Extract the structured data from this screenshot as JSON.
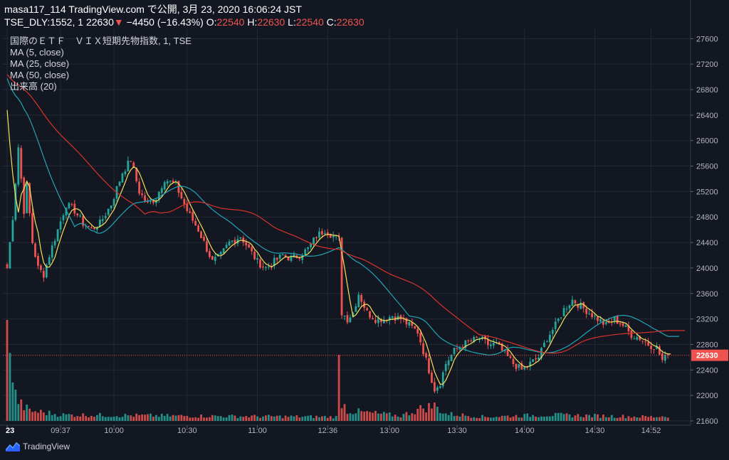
{
  "header": {
    "line1": "masa117_114 TradingView.com で公開, 3月 23, 2020 16:06:24 JST",
    "symbol": "TSE_DLY:1552, 1",
    "last": "22630",
    "arrow": "▼",
    "change": "−4450 (−16.43%)",
    "o_label": "O:",
    "o": "22540",
    "h_label": "H:",
    "h": "22630",
    "l_label": "L:",
    "l": "22540",
    "c_label": "C:",
    "c": "22630"
  },
  "legend": {
    "title": "国際のＥＴＦ　ＶＩＸ短期先物指数, 1, TSE",
    "ma5": "MA (5, close)",
    "ma25": "MA (25, close)",
    "ma50": "MA (50, close)",
    "volume": "出来高 (20)"
  },
  "brand": "TradingView",
  "chart_data": {
    "type": "candlestick",
    "y_ticks": [
      21600,
      22000,
      22400,
      22800,
      23200,
      23600,
      24000,
      24400,
      24800,
      25200,
      25600,
      26000,
      26400,
      26800,
      27200,
      27600
    ],
    "ylim": [
      21600,
      27760
    ],
    "x_ticks": [
      "23",
      "09:37",
      "10:00",
      "10:30",
      "11:00",
      "12:36",
      "13:00",
      "13:30",
      "14:00",
      "14:30",
      "14:52"
    ],
    "last_price": 22630,
    "last_price_label": "22630",
    "grid": true,
    "colors": {
      "up": "#26a69a",
      "down": "#ef5350",
      "ma5": "#f5e05a",
      "ma25": "#1fa6b4",
      "ma50": "#d9342b",
      "last_line": "#ef5350"
    },
    "anchors": [
      [
        0,
        24000
      ],
      [
        2,
        24800
      ],
      [
        4,
        25900
      ],
      [
        6,
        24900
      ],
      [
        7,
        25300
      ],
      [
        9,
        24400
      ],
      [
        11,
        24000
      ],
      [
        13,
        23900
      ],
      [
        15,
        24200
      ],
      [
        18,
        24600
      ],
      [
        21,
        25000
      ],
      [
        24,
        24900
      ],
      [
        27,
        24700
      ],
      [
        30,
        24600
      ],
      [
        33,
        24700
      ],
      [
        37,
        25000
      ],
      [
        41,
        25500
      ],
      [
        44,
        25700
      ],
      [
        47,
        25200
      ],
      [
        50,
        25000
      ],
      [
        53,
        25100
      ],
      [
        56,
        25400
      ],
      [
        60,
        25300
      ],
      [
        64,
        24900
      ],
      [
        68,
        24600
      ],
      [
        71,
        24300
      ],
      [
        73,
        24100
      ],
      [
        76,
        24200
      ],
      [
        79,
        24400
      ],
      [
        83,
        24500
      ],
      [
        86,
        24300
      ],
      [
        89,
        24100
      ],
      [
        92,
        24000
      ],
      [
        95,
        24100
      ],
      [
        98,
        24200
      ],
      [
        101,
        24150
      ],
      [
        104,
        24200
      ],
      [
        107,
        24300
      ],
      [
        110,
        24500
      ],
      [
        113,
        24600
      ],
      [
        116,
        24500
      ],
      [
        118,
        24450
      ],
      [
        119,
        23300
      ],
      [
        121,
        23200
      ],
      [
        123,
        23300
      ],
      [
        125,
        23600
      ],
      [
        128,
        23300
      ],
      [
        131,
        23200
      ],
      [
        134,
        23200
      ],
      [
        137,
        23250
      ],
      [
        140,
        23200
      ],
      [
        143,
        23100
      ],
      [
        146,
        23000
      ],
      [
        148,
        22700
      ],
      [
        150,
        22400
      ],
      [
        152,
        22100
      ],
      [
        154,
        22200
      ],
      [
        156,
        22500
      ],
      [
        159,
        22700
      ],
      [
        162,
        22800
      ],
      [
        165,
        22850
      ],
      [
        168,
        22900
      ],
      [
        171,
        22800
      ],
      [
        174,
        22800
      ],
      [
        177,
        22650
      ],
      [
        180,
        22500
      ],
      [
        183,
        22400
      ],
      [
        186,
        22500
      ],
      [
        189,
        22600
      ],
      [
        192,
        22900
      ],
      [
        195,
        23100
      ],
      [
        198,
        23350
      ],
      [
        201,
        23500
      ],
      [
        204,
        23400
      ],
      [
        207,
        23300
      ],
      [
        210,
        23200
      ],
      [
        213,
        23100
      ],
      [
        216,
        23200
      ],
      [
        219,
        23100
      ],
      [
        222,
        22950
      ],
      [
        225,
        22900
      ],
      [
        228,
        22800
      ],
      [
        231,
        22750
      ],
      [
        233,
        22550
      ],
      [
        235,
        22630
      ]
    ],
    "volume_anchors": [
      [
        0,
        1
      ],
      [
        1,
        0.95
      ],
      [
        2,
        0.42
      ],
      [
        3,
        0.25
      ],
      [
        5,
        0.16
      ],
      [
        8,
        0.1
      ],
      [
        20,
        0.06
      ],
      [
        60,
        0.05
      ],
      [
        117,
        0.04
      ],
      [
        118,
        0.55
      ],
      [
        119,
        0.2
      ],
      [
        121,
        0.1
      ],
      [
        140,
        0.05
      ],
      [
        148,
        0.13
      ],
      [
        152,
        0.15
      ],
      [
        156,
        0.07
      ],
      [
        170,
        0.04
      ],
      [
        192,
        0.06
      ],
      [
        230,
        0.04
      ],
      [
        235,
        0.05
      ]
    ]
  }
}
